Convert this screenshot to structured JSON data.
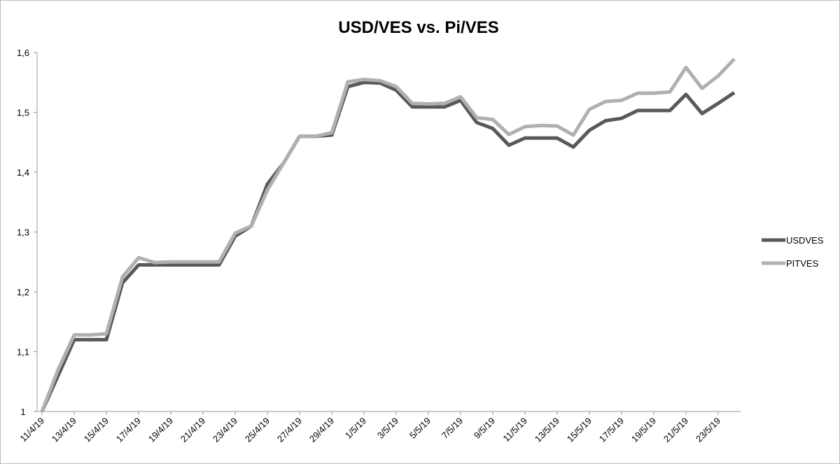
{
  "chart_data": {
    "type": "line",
    "title": "USD/VES vs. Pi/VES",
    "categories": [
      "11/4/19",
      null,
      "13/4/19",
      null,
      "15/4/19",
      null,
      "17/4/19",
      null,
      "19/4/19",
      null,
      "21/4/19",
      null,
      "23/4/19",
      null,
      "25/4/19",
      null,
      "27/4/19",
      null,
      "29/4/19",
      null,
      "1/5/19",
      null,
      "3/5/19",
      null,
      "5/5/19",
      null,
      "7/5/19",
      null,
      "9/5/19",
      null,
      "11/5/19",
      null,
      "13/5/19",
      null,
      "15/5/19",
      null,
      "17/5/19",
      null,
      "19/5/19",
      null,
      "21/5/19",
      null,
      "23/5/19",
      null
    ],
    "series": [
      {
        "name": "USDVES",
        "color": "#595959",
        "values": [
          1.0,
          1.06,
          1.12,
          1.12,
          1.12,
          1.215,
          1.245,
          1.245,
          1.245,
          1.245,
          1.245,
          1.245,
          1.293,
          1.31,
          1.38,
          1.415,
          1.46,
          1.46,
          1.462,
          1.543,
          1.55,
          1.549,
          1.537,
          1.509,
          1.509,
          1.509,
          1.52,
          1.483,
          1.473,
          1.445,
          1.457,
          1.457,
          1.457,
          1.442,
          1.47,
          1.486,
          1.49,
          1.503,
          1.503,
          1.503,
          1.53,
          1.498,
          1.515,
          1.533
        ]
      },
      {
        "name": "PITVES",
        "color": "#b0b0b0",
        "values": [
          1.0,
          1.07,
          1.128,
          1.128,
          1.13,
          1.225,
          1.257,
          1.249,
          1.25,
          1.25,
          1.25,
          1.25,
          1.298,
          1.31,
          1.37,
          1.415,
          1.46,
          1.46,
          1.466,
          1.551,
          1.555,
          1.553,
          1.543,
          1.515,
          1.514,
          1.515,
          1.526,
          1.491,
          1.488,
          1.463,
          1.476,
          1.478,
          1.477,
          1.462,
          1.505,
          1.518,
          1.52,
          1.532,
          1.532,
          1.534,
          1.575,
          1.54,
          1.561,
          1.589
        ]
      }
    ],
    "ylim": [
      1,
      1.6
    ],
    "yticks": [
      1,
      {
        "value": 1.1,
        "label": "1,1"
      },
      {
        "value": 1.2,
        "label": "1,2"
      },
      {
        "value": 1.3,
        "label": "1,3"
      },
      {
        "value": 1.4,
        "label": "1,4"
      },
      {
        "value": 1.5,
        "label": "1,5"
      },
      {
        "value": 1.6,
        "label": "1,6"
      }
    ],
    "grid": false,
    "legend": "right"
  }
}
